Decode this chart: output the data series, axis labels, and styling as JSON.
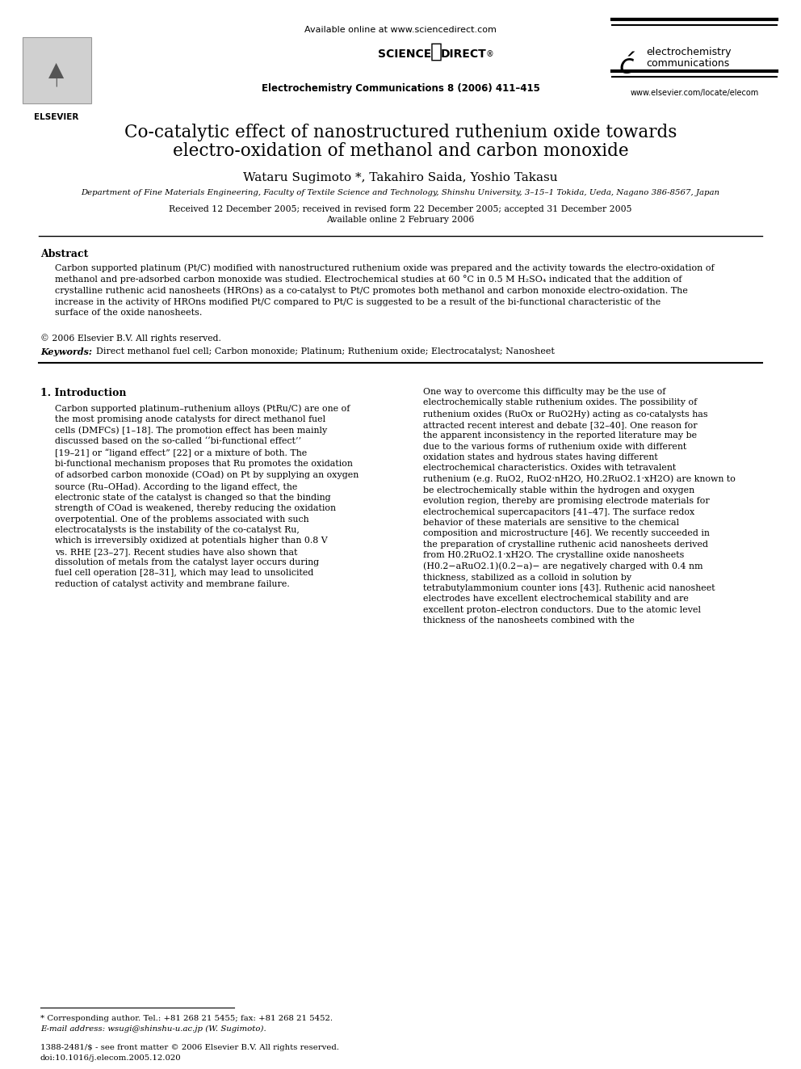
{
  "bg_color": "#ffffff",
  "title_line1": "Co-catalytic effect of nanostructured ruthenium oxide towards",
  "title_line2": "electro-oxidation of methanol and carbon monoxide",
  "authors": "Wataru Sugimoto *, Takahiro Saida, Yoshio Takasu",
  "affiliation": "Department of Fine Materials Engineering, Faculty of Textile Science and Technology, Shinshu University, 3–15–1 Tokida, Ueda, Nagano 386-8567, Japan",
  "received": "Received 12 December 2005; received in revised form 22 December 2005; accepted 31 December 2005",
  "available_online_date": "Available online 2 February 2006",
  "journal_header": "Electrochemistry Communications 8 (2006) 411–415",
  "available_online": "Available online at www.sciencedirect.com",
  "journal_name_line1": "electrochemistry",
  "journal_name_line2": "communications",
  "website": "www.elsevier.com/locate/elecom",
  "abstract_title": "Abstract",
  "abstract_text": "Carbon supported platinum (Pt/C) modified with nanostructured ruthenium oxide was prepared and the activity towards the electro-oxidation of methanol and pre-adsorbed carbon monoxide was studied. Electrochemical studies at 60 °C in 0.5 M H₂SO₄ indicated that the addition of crystalline ruthenic acid nanosheets (HROns) as a co-catalyst to Pt/C promotes both methanol and carbon monoxide electro-oxidation. The increase in the activity of HROns modified Pt/C compared to Pt/C is suggested to be a result of the bi-functional characteristic of the surface of the oxide nanosheets.",
  "copyright": "© 2006 Elsevier B.V. All rights reserved.",
  "keywords_label": "Keywords:",
  "keywords_text": "Direct methanol fuel cell; Carbon monoxide; Platinum; Ruthenium oxide; Electrocatalyst; Nanosheet",
  "section1_title": "1. Introduction",
  "intro_col1": "Carbon supported platinum–ruthenium alloys (PtRu/C) are one of the most promising anode catalysts for direct methanol fuel cells (DMFCs) [1–18]. The promotion effect has been mainly discussed based on the so-called ‘‘bi-functional effect’’ [19–21] or “ligand effect” [22] or a mixture of both. The bi-functional mechanism proposes that Ru promotes the oxidation of adsorbed carbon monoxide (COad) on Pt by supplying an oxygen source (Ru–OHad). According to the ligand effect, the electronic state of the catalyst is changed so that the binding strength of COad is weakened, thereby reducing the oxidation overpotential. One of the problems associated with such electrocatalysts is the instability of the co-catalyst Ru, which is irreversibly oxidized at potentials higher than 0.8 V vs. RHE [23–27]. Recent studies have also shown that dissolution of metals from the catalyst layer occurs during fuel cell operation [28–31], which may lead to unsolicited reduction of catalyst activity and membrane failure.",
  "intro_col2": "One way to overcome this difficulty may be the use of electrochemically stable ruthenium oxides. The possibility of ruthenium oxides (RuOx or RuO2Hy) acting as co-catalysts has attracted recent interest and debate [32–40]. One reason for the apparent inconsistency in the reported literature may be due to the various forms of ruthenium oxide with different oxidation states and hydrous states having different electrochemical characteristics. Oxides with tetravalent ruthenium (e.g. RuO2, RuO2·nH2O, H0.2RuO2.1·xH2O) are known to be electrochemically stable within the hydrogen and oxygen evolution region, thereby are promising electrode materials for electrochemical supercapacitors [41–47]. The surface redox behavior of these materials are sensitive to the chemical composition and microstructure [46]. We recently succeeded in the preparation of crystalline ruthenic acid nanosheets derived from H0.2RuO2.1·xH2O. The crystalline oxide nanosheets (H0.2−aRuO2.1)(0.2−a)− are negatively charged with 0.4 nm thickness, stabilized as a colloid in solution by tetrabutylammonium counter ions [43]. Ruthenic acid nanosheet electrodes have excellent electrochemical stability and are excellent proton–electron conductors. Due to the atomic level thickness of the nanosheets combined with the",
  "footnote_star": "* Corresponding author. Tel.: +81 268 21 5455; fax: +81 268 21 5452.",
  "footnote_email": "E-mail address: wsugi@shinshu-u.ac.jp (W. Sugimoto).",
  "footer_issn": "1388-2481/$ - see front matter © 2006 Elsevier B.V. All rights reserved.",
  "footer_doi": "doi:10.1016/j.elecom.2005.12.020"
}
